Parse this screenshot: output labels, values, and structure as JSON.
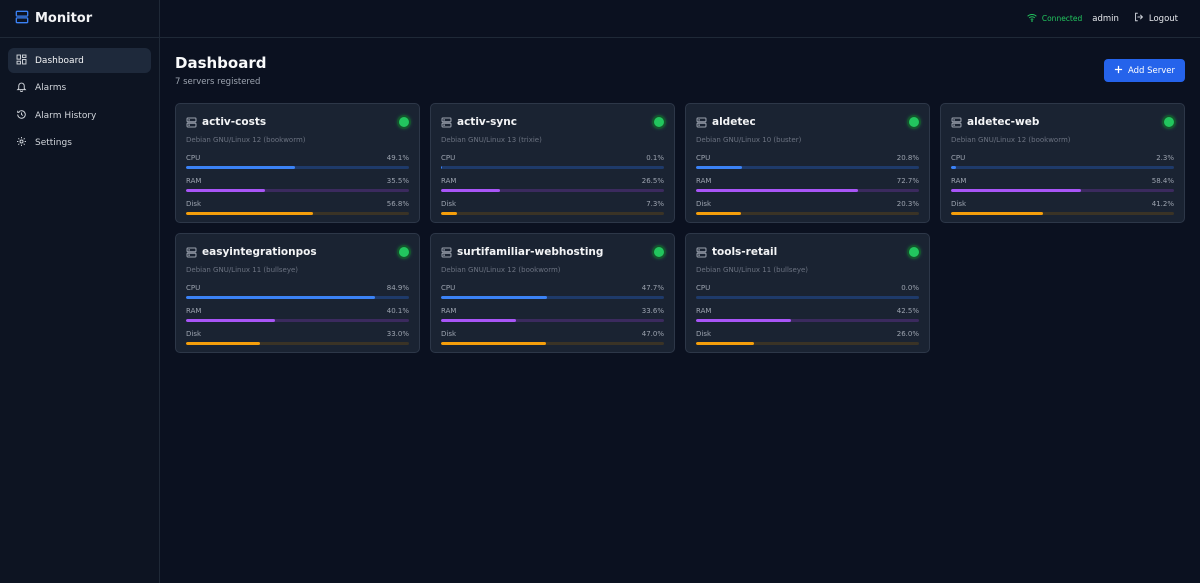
{
  "app": {
    "title": "Monitor"
  },
  "sidebar": {
    "items": [
      {
        "label": "Dashboard",
        "icon": "dashboard-icon",
        "active": true
      },
      {
        "label": "Alarms",
        "icon": "bell-icon",
        "active": false
      },
      {
        "label": "Alarm History",
        "icon": "history-icon",
        "active": false
      },
      {
        "label": "Settings",
        "icon": "gear-icon",
        "active": false
      }
    ]
  },
  "topbar": {
    "status": "Connected",
    "user": "admin",
    "logout": "Logout"
  },
  "page": {
    "title": "Dashboard",
    "subtitle": "7 servers registered",
    "add_button": "Add Server"
  },
  "colors": {
    "accent": "#2563eb",
    "online": "#22c55e",
    "cpu": "#3b82f6",
    "ram": "#a855f7",
    "disk": "#f59e0b"
  },
  "servers": [
    {
      "name": "activ-costs",
      "os": "Debian GNU/Linux 12 (bookworm)",
      "status": "online",
      "metrics": [
        {
          "label": "CPU",
          "value": 49.1,
          "text": "49.1%"
        },
        {
          "label": "RAM",
          "value": 35.5,
          "text": "35.5%"
        },
        {
          "label": "Disk",
          "value": 56.8,
          "text": "56.8%"
        }
      ]
    },
    {
      "name": "activ-sync",
      "os": "Debian GNU/Linux 13 (trixie)",
      "status": "online",
      "metrics": [
        {
          "label": "CPU",
          "value": 0.1,
          "text": "0.1%"
        },
        {
          "label": "RAM",
          "value": 26.5,
          "text": "26.5%"
        },
        {
          "label": "Disk",
          "value": 7.3,
          "text": "7.3%"
        }
      ]
    },
    {
      "name": "aldetec",
      "os": "Debian GNU/Linux 10 (buster)",
      "status": "online",
      "metrics": [
        {
          "label": "CPU",
          "value": 20.8,
          "text": "20.8%"
        },
        {
          "label": "RAM",
          "value": 72.7,
          "text": "72.7%"
        },
        {
          "label": "Disk",
          "value": 20.3,
          "text": "20.3%"
        }
      ]
    },
    {
      "name": "aldetec-web",
      "os": "Debian GNU/Linux 12 (bookworm)",
      "status": "online",
      "metrics": [
        {
          "label": "CPU",
          "value": 2.3,
          "text": "2.3%"
        },
        {
          "label": "RAM",
          "value": 58.4,
          "text": "58.4%"
        },
        {
          "label": "Disk",
          "value": 41.2,
          "text": "41.2%"
        }
      ]
    },
    {
      "name": "easyintegrationpos",
      "os": "Debian GNU/Linux 11 (bullseye)",
      "status": "online",
      "metrics": [
        {
          "label": "CPU",
          "value": 84.9,
          "text": "84.9%"
        },
        {
          "label": "RAM",
          "value": 40.1,
          "text": "40.1%"
        },
        {
          "label": "Disk",
          "value": 33.0,
          "text": "33.0%"
        }
      ]
    },
    {
      "name": "surtifamiliar-webhosting",
      "os": "Debian GNU/Linux 12 (bookworm)",
      "status": "online",
      "metrics": [
        {
          "label": "CPU",
          "value": 47.7,
          "text": "47.7%"
        },
        {
          "label": "RAM",
          "value": 33.6,
          "text": "33.6%"
        },
        {
          "label": "Disk",
          "value": 47.0,
          "text": "47.0%"
        }
      ]
    },
    {
      "name": "tools-retail",
      "os": "Debian GNU/Linux 11 (bullseye)",
      "status": "online",
      "metrics": [
        {
          "label": "CPU",
          "value": 0.0,
          "text": "0.0%"
        },
        {
          "label": "RAM",
          "value": 42.5,
          "text": "42.5%"
        },
        {
          "label": "Disk",
          "value": 26.0,
          "text": "26.0%"
        }
      ]
    }
  ]
}
